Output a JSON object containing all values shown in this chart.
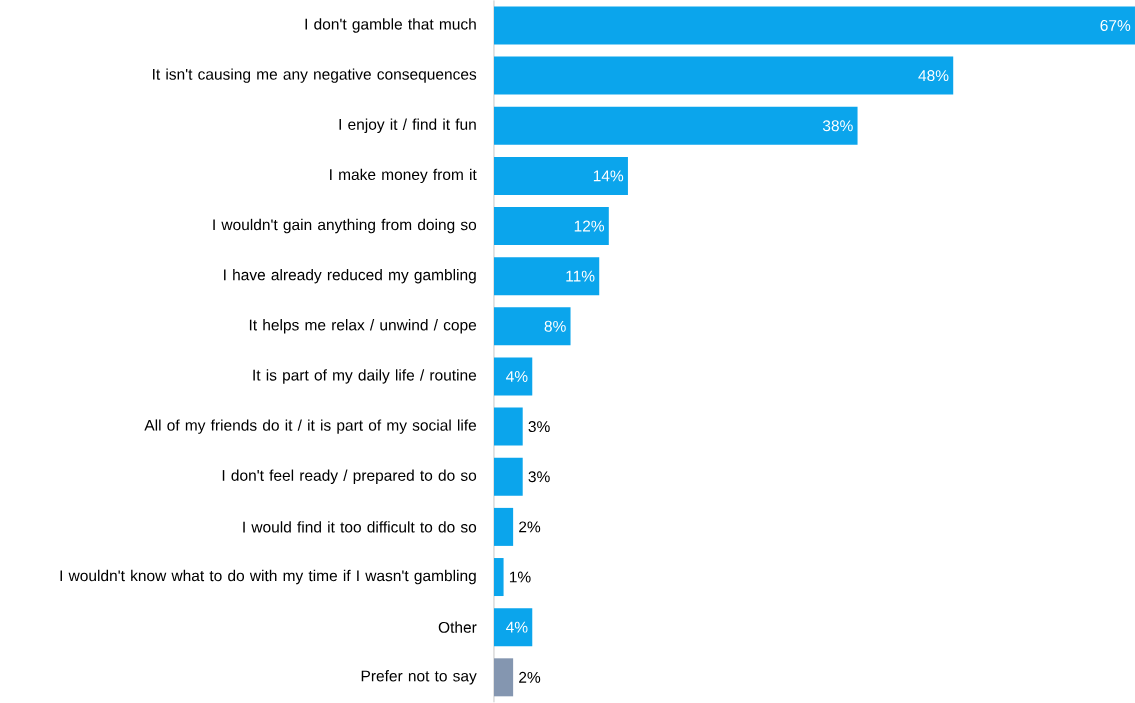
{
  "chart_data": {
    "type": "bar",
    "orientation": "horizontal",
    "categories": [
      "I don't gamble that much",
      "It isn't causing me any negative consequences",
      "I enjoy it / find it fun",
      "I make money from it",
      "I wouldn't gain anything from doing so",
      "I have already reduced my gambling",
      "It helps me relax / unwind / cope",
      "It is part of my daily life / routine",
      "All of my friends do it / it is part of my social life",
      "I don't feel ready / prepared to do so",
      "I would find it too difficult to do so",
      "I wouldn't know what to do with my time if I wasn't gambling",
      "Other",
      "Prefer not to say"
    ],
    "values": [
      67,
      48,
      38,
      14,
      12,
      11,
      8,
      4,
      3,
      3,
      2,
      1,
      4,
      2
    ],
    "value_labels": [
      "67%",
      "48%",
      "38%",
      "14%",
      "12%",
      "11%",
      "8%",
      "4%",
      "3%",
      "3%",
      "2%",
      "1%",
      "4%",
      "2%"
    ],
    "colors": [
      "#0ba5ec",
      "#0ba5ec",
      "#0ba5ec",
      "#0ba5ec",
      "#0ba5ec",
      "#0ba5ec",
      "#0ba5ec",
      "#0ba5ec",
      "#0ba5ec",
      "#0ba5ec",
      "#0ba5ec",
      "#0ba5ec",
      "#0ba5ec",
      "#8496b0"
    ]
  }
}
